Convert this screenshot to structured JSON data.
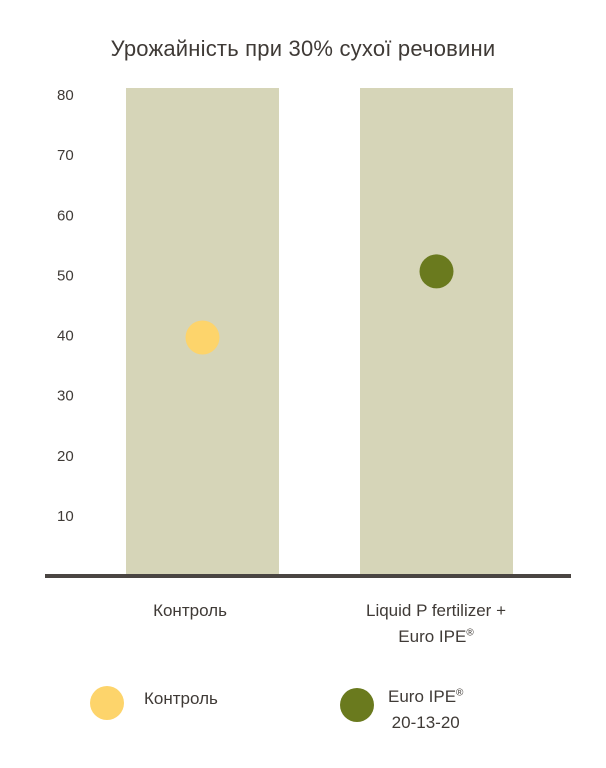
{
  "chart_data": {
    "type": "scatter",
    "title": "Урожайність при 30% сухої речовини",
    "categories": [
      {
        "line1": "Контроль",
        "line2": "",
        "sup": ""
      },
      {
        "line1": "Liquid P fertilizer +",
        "line2": "Euro IPE",
        "sup": "®"
      }
    ],
    "series": [
      {
        "name": "Контроль",
        "category_index": 0,
        "value": 40,
        "color": "#fdd46b"
      },
      {
        "name": "Euro IPE",
        "name_sup": "®",
        "name_line2": "20-13-20",
        "category_index": 1,
        "value": 51,
        "color": "#6a7a1e"
      }
    ],
    "yticks": [
      10,
      20,
      30,
      40,
      50,
      60,
      70,
      80
    ],
    "ylim": [
      0,
      80
    ],
    "column_color": "#d6d5b8",
    "axis_color": "#4a4542",
    "legend_position": "bottom"
  }
}
